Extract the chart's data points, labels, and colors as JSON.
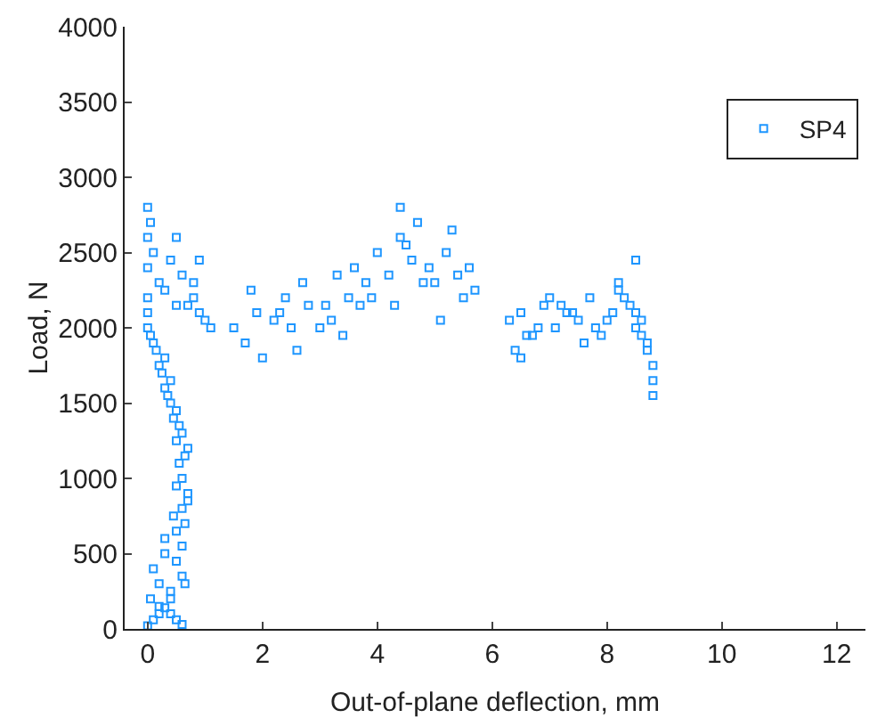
{
  "chart_data": {
    "type": "scatter",
    "xlabel": "Out-of-plane deflection, mm",
    "ylabel": "Load, N",
    "xlim": [
      -0.4,
      12.5
    ],
    "ylim": [
      0,
      4000
    ],
    "xticks": [
      0,
      2,
      4,
      6,
      8,
      10,
      12
    ],
    "yticks": [
      0,
      500,
      1000,
      1500,
      2000,
      2500,
      3000,
      3500,
      4000
    ],
    "marker": "square",
    "legend": "top right",
    "grid": false,
    "series": [
      {
        "name": "SP4",
        "color": "#1e96ff",
        "x": [
          0.0,
          0.1,
          0.2,
          0.3,
          0.4,
          0.5,
          0.6,
          0.05,
          0.2,
          0.4,
          0.6,
          0.1,
          0.3,
          0.5,
          0.65,
          0.2,
          0.4,
          0.6,
          0.3,
          0.5,
          0.65,
          0.45,
          0.6,
          0.7,
          0.5,
          0.6,
          0.7,
          0.55,
          0.65,
          0.7,
          0.5,
          0.6,
          0.55,
          0.45,
          0.5,
          0.4,
          0.35,
          0.3,
          0.4,
          0.25,
          0.2,
          0.3,
          0.15,
          0.1,
          0.05,
          0.0,
          0.0,
          0.0,
          0.0,
          0.0,
          0.0,
          0.05,
          0.1,
          0.2,
          0.3,
          0.5,
          0.4,
          0.6,
          0.8,
          0.9,
          0.7,
          1.0,
          0.5,
          0.8,
          1.1,
          0.9,
          1.5,
          1.7,
          1.9,
          2.0,
          2.2,
          2.4,
          2.5,
          2.6,
          2.8,
          3.0,
          1.8,
          2.3,
          2.7,
          3.1,
          3.3,
          3.5,
          3.2,
          3.6,
          3.8,
          4.0,
          3.9,
          4.2,
          4.4,
          4.3,
          4.6,
          4.8,
          4.5,
          4.7,
          4.9,
          5.0,
          5.2,
          5.4,
          5.5,
          5.3,
          5.6,
          5.7,
          4.4,
          3.4,
          3.7,
          5.1,
          6.3,
          6.5,
          6.7,
          6.9,
          7.1,
          7.3,
          7.5,
          7.7,
          7.9,
          8.1,
          6.4,
          6.8,
          7.2,
          7.6,
          8.0,
          6.6,
          7.0,
          7.4,
          7.8,
          6.5,
          8.2,
          8.3,
          8.4,
          8.5,
          8.5,
          8.6,
          8.6,
          8.7,
          8.7,
          8.8,
          8.8,
          8.8,
          8.2,
          8.5
        ],
        "values": [
          20,
          60,
          100,
          140,
          100,
          60,
          30,
          200,
          300,
          250,
          350,
          400,
          500,
          450,
          300,
          150,
          200,
          550,
          600,
          650,
          700,
          750,
          800,
          900,
          950,
          1000,
          850,
          1100,
          1150,
          1200,
          1250,
          1300,
          1350,
          1400,
          1450,
          1500,
          1550,
          1600,
          1650,
          1700,
          1750,
          1800,
          1850,
          1900,
          1950,
          2000,
          2100,
          2200,
          2400,
          2600,
          2800,
          2700,
          2500,
          2300,
          2250,
          2150,
          2450,
          2350,
          2300,
          2450,
          2150,
          2050,
          2600,
          2200,
          2000,
          2100,
          2000,
          1900,
          2100,
          1800,
          2050,
          2200,
          2000,
          1850,
          2150,
          2000,
          2250,
          2100,
          2300,
          2150,
          2350,
          2200,
          2050,
          2400,
          2300,
          2500,
          2200,
          2350,
          2600,
          2150,
          2450,
          2300,
          2550,
          2700,
          2400,
          2300,
          2500,
          2350,
          2200,
          2650,
          2400,
          2250,
          2800,
          1950,
          2150,
          2050,
          2050,
          2100,
          1950,
          2150,
          2000,
          2100,
          2050,
          2200,
          1950,
          2100,
          1850,
          2000,
          2150,
          1900,
          2050,
          1950,
          2200,
          2100,
          2000,
          1800,
          2250,
          2200,
          2150,
          2100,
          2000,
          2050,
          1950,
          1900,
          1850,
          1750,
          1650,
          1550,
          2300,
          2450
        ]
      }
    ]
  }
}
